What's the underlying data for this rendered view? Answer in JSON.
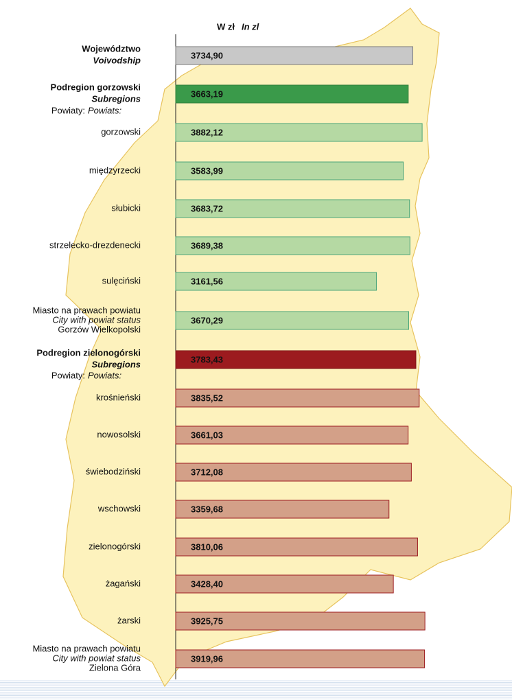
{
  "chart_data": {
    "type": "bar",
    "orientation": "horizontal",
    "unit_label": [
      "W zł",
      "In zl"
    ],
    "powiaty_label": [
      "Powiaty:",
      "Powiats:"
    ],
    "categories": [
      [
        "Województwo",
        "Voivodship"
      ],
      [
        "Podregion gorzowski",
        "Subregions"
      ],
      [
        "gorzowski"
      ],
      [
        "międzyrzecki"
      ],
      [
        "słubicki"
      ],
      [
        "strzelecko-drezdenecki"
      ],
      [
        "sulęciński"
      ],
      [
        "Miasto na prawach powiatu",
        "City with powiat status",
        "Gorzów Wielkopolski"
      ],
      [
        "Podregion zielonogórski",
        "Subregions"
      ],
      [
        "krośnieński"
      ],
      [
        "nowosolski"
      ],
      [
        "świebodziński"
      ],
      [
        "wschowski"
      ],
      [
        "zielonogórski"
      ],
      [
        "żagański"
      ],
      [
        "żarski"
      ],
      [
        "Miasto na prawach powiatu",
        "City with powiat status",
        "Zielona Góra"
      ]
    ],
    "values": [
      3734.9,
      3663.19,
      3882.12,
      3583.99,
      3683.72,
      3689.38,
      3161.56,
      3670.29,
      3783.43,
      3835.52,
      3661.03,
      3712.08,
      3359.68,
      3810.06,
      3428.4,
      3925.75,
      3919.96
    ],
    "value_labels": [
      "3734,90",
      "3663,19",
      "3882,12",
      "3583,99",
      "3683,72",
      "3689,38",
      "3161,56",
      "3670,29",
      "3783,43",
      "3835,52",
      "3661,03",
      "3712,08",
      "3359,68",
      "3810,06",
      "3428,40",
      "3925,75",
      "3919,96"
    ],
    "colors": [
      "#c8c8c8",
      "#3a9a4a",
      "#b5d9a3",
      "#b5d9a3",
      "#b5d9a3",
      "#b5d9a3",
      "#b5d9a3",
      "#b5d9a3",
      "#9c1b1f",
      "#d3a088",
      "#d3a088",
      "#d3a088",
      "#d3a088",
      "#d3a088",
      "#d3a088",
      "#d3a088",
      "#d3a088"
    ],
    "xlim": [
      0,
      4000
    ]
  }
}
